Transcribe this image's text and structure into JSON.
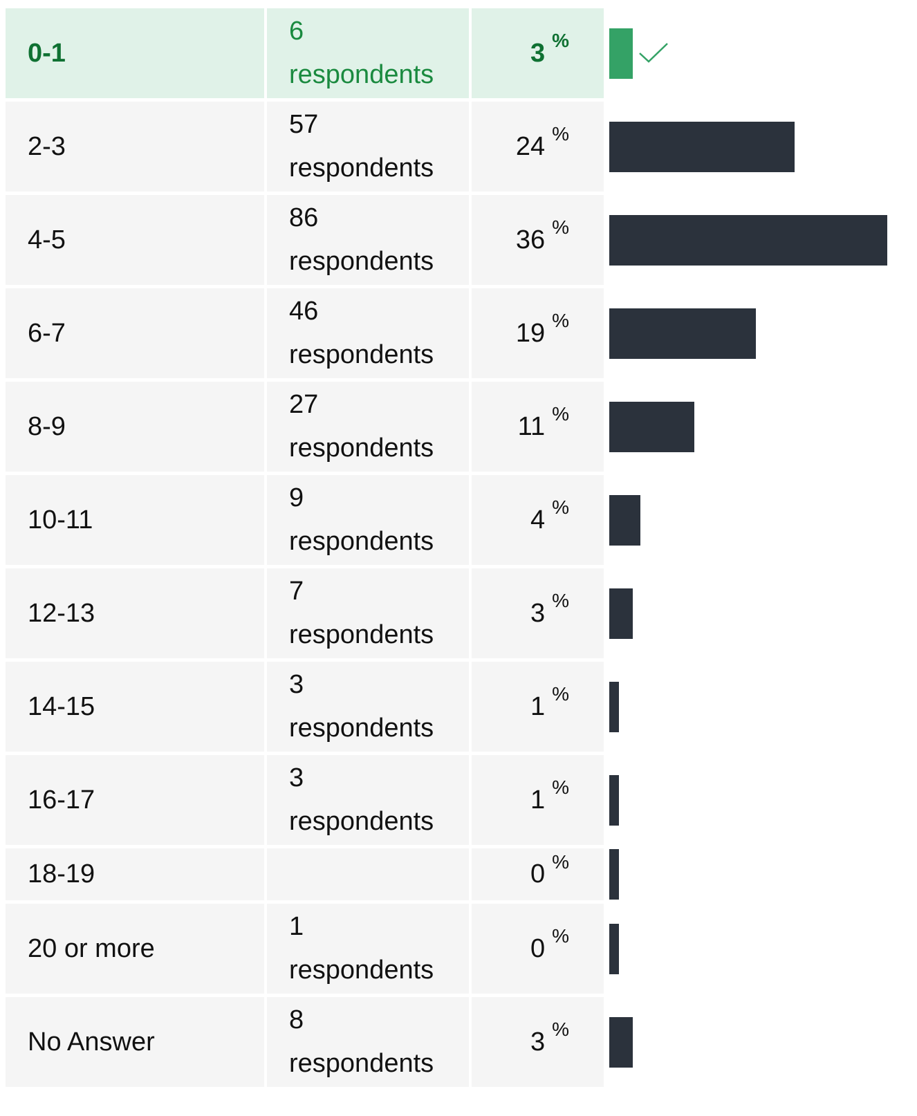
{
  "chart_data": {
    "type": "bar",
    "orientation": "horizontal",
    "percent_symbol": "%",
    "correct_color": "#34a266",
    "bar_color": "#2b323c",
    "rows": [
      {
        "answer": "0-1",
        "count": "6\nrespondents",
        "respondents": 6,
        "percent": "3",
        "value": 3,
        "correct": true
      },
      {
        "answer": "2-3",
        "count": "57\nrespondents",
        "respondents": 57,
        "percent": "24",
        "value": 24,
        "correct": false
      },
      {
        "answer": "4-5",
        "count": "86\nrespondents",
        "respondents": 86,
        "percent": "36",
        "value": 36,
        "correct": false
      },
      {
        "answer": "6-7",
        "count": "46\nrespondents",
        "respondents": 46,
        "percent": "19",
        "value": 19,
        "correct": false
      },
      {
        "answer": "8-9",
        "count": "27\nrespondents",
        "respondents": 27,
        "percent": "11",
        "value": 11,
        "correct": false
      },
      {
        "answer": "10-11",
        "count": "9\nrespondents",
        "respondents": 9,
        "percent": "4",
        "value": 4,
        "correct": false
      },
      {
        "answer": "12-13",
        "count": "7\nrespondents",
        "respondents": 7,
        "percent": "3",
        "value": 3,
        "correct": false
      },
      {
        "answer": "14-15",
        "count": "3\nrespondents",
        "respondents": 3,
        "percent": "1",
        "value": 1,
        "correct": false
      },
      {
        "answer": "16-17",
        "count": "3\nrespondents",
        "respondents": 3,
        "percent": "1",
        "value": 1,
        "correct": false
      },
      {
        "answer": "18-19",
        "count": "",
        "respondents": 0,
        "percent": "0",
        "value": 0,
        "correct": false
      },
      {
        "answer": "20 or more",
        "count": "1\nrespondents",
        "respondents": 1,
        "percent": "0",
        "value": 0,
        "correct": false
      },
      {
        "answer": "No Answer",
        "count": "8\nrespondents",
        "respondents": 8,
        "percent": "3",
        "value": 3,
        "correct": false
      }
    ],
    "icons": {
      "correct_marker": "check-icon"
    }
  }
}
